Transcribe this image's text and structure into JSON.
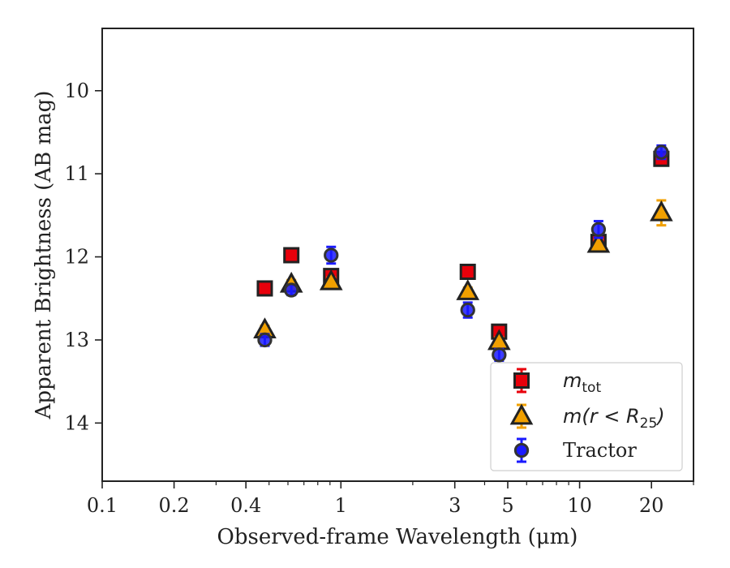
{
  "chart_data": {
    "type": "scatter",
    "x_scale": "log",
    "y_inverted": true,
    "xlim": [
      0.1,
      30
    ],
    "ylim": [
      14.7,
      9.25
    ],
    "xlabel": "Observed-frame Wavelength (μm)",
    "ylabel": "Apparent Brightness (AB mag)",
    "x_ticks": [
      {
        "value": 0.1,
        "label": "0.1"
      },
      {
        "value": 0.2,
        "label": "0.2"
      },
      {
        "value": 0.4,
        "label": "0.4"
      },
      {
        "value": 1,
        "label": "1"
      },
      {
        "value": 3,
        "label": "3"
      },
      {
        "value": 5,
        "label": "5"
      },
      {
        "value": 10,
        "label": "10"
      },
      {
        "value": 20,
        "label": "20"
      }
    ],
    "y_ticks": [
      {
        "value": 10,
        "label": "10"
      },
      {
        "value": 11,
        "label": "11"
      },
      {
        "value": 12,
        "label": "12"
      },
      {
        "value": 13,
        "label": "13"
      },
      {
        "value": 14,
        "label": "14"
      }
    ],
    "grid": false,
    "legend_position": "bottom-right",
    "series": [
      {
        "name": "m_tot",
        "marker": "square",
        "color": "#e8000b",
        "edge_color": "#222222",
        "points": [
          {
            "x": 0.48,
            "y": 12.38,
            "err": 0.07
          },
          {
            "x": 0.62,
            "y": 11.98,
            "err": 0.06
          },
          {
            "x": 0.91,
            "y": 12.23,
            "err": 0.07
          },
          {
            "x": 3.4,
            "y": 12.18,
            "err": 0.08
          },
          {
            "x": 4.6,
            "y": 12.9,
            "err": 0.07
          },
          {
            "x": 12.0,
            "y": 11.82,
            "err": 0.07
          },
          {
            "x": 22.0,
            "y": 10.82,
            "err": 0.07
          }
        ]
      },
      {
        "name": "m(r < R25)",
        "marker": "triangle",
        "color": "#f1a000",
        "edge_color": "#222222",
        "points": [
          {
            "x": 0.48,
            "y": 12.88,
            "err": 0.05
          },
          {
            "x": 0.62,
            "y": 12.33,
            "err": 0.05
          },
          {
            "x": 0.91,
            "y": 12.3,
            "err": 0.05
          },
          {
            "x": 3.4,
            "y": 12.42,
            "err": 0.05
          },
          {
            "x": 4.6,
            "y": 13.02,
            "err": 0.05
          },
          {
            "x": 12.0,
            "y": 11.85,
            "err": 0.05
          },
          {
            "x": 22.0,
            "y": 11.47,
            "err": 0.15
          }
        ]
      },
      {
        "name": "Tractor",
        "marker": "circle",
        "color": "#1a1aff",
        "edge_color": "#333333",
        "points": [
          {
            "x": 0.48,
            "y": 13.0,
            "err": 0.07
          },
          {
            "x": 0.62,
            "y": 12.4,
            "err": 0.06
          },
          {
            "x": 0.91,
            "y": 11.98,
            "err": 0.1
          },
          {
            "x": 3.4,
            "y": 12.64,
            "err": 0.09
          },
          {
            "x": 4.6,
            "y": 13.18,
            "err": 0.07
          },
          {
            "x": 12.0,
            "y": 11.67,
            "err": 0.1
          },
          {
            "x": 22.0,
            "y": 10.74,
            "err": 0.08
          }
        ]
      }
    ]
  },
  "legend": {
    "items": [
      {
        "marker": "square",
        "main": "m",
        "sub": "tot",
        "rest": ""
      },
      {
        "marker": "triangle",
        "main": "m(r < R",
        "sub": "25",
        "rest": ")"
      },
      {
        "marker": "circle",
        "main": "",
        "sub": "",
        "rest": "Tractor"
      }
    ]
  }
}
